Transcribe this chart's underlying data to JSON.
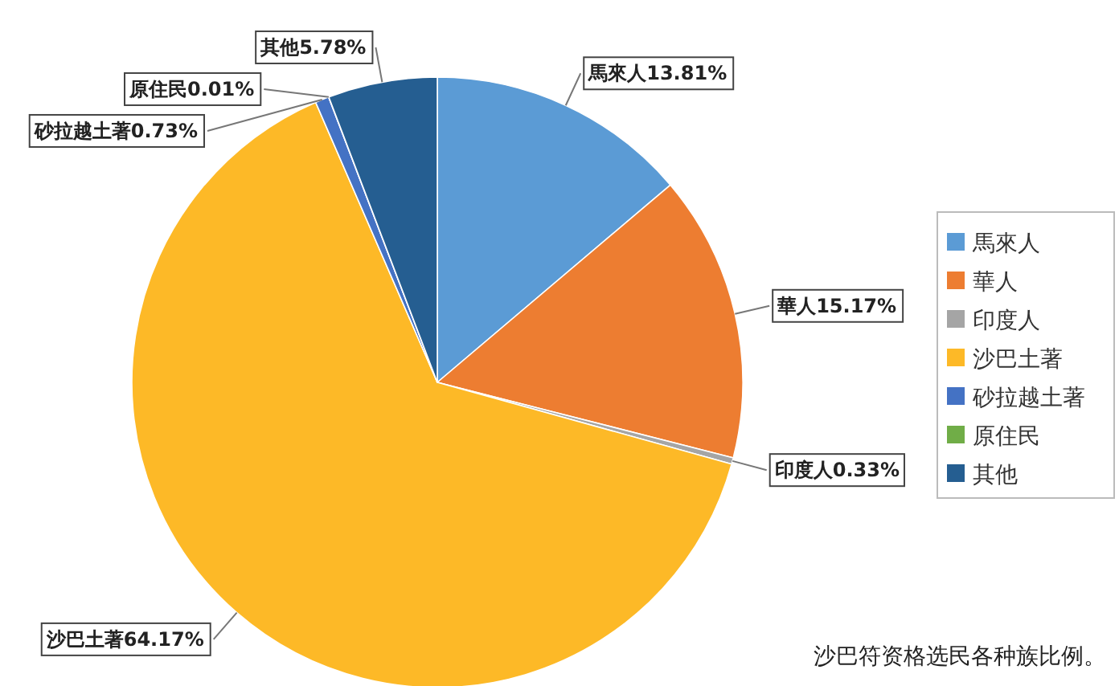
{
  "chart_data": {
    "type": "pie",
    "categories": [
      "馬來人",
      "華人",
      "印度人",
      "沙巴土著",
      "砂拉越土著",
      "原住民",
      "其他"
    ],
    "values": [
      13.81,
      15.17,
      0.33,
      64.17,
      0.73,
      0.01,
      5.78
    ],
    "value_labels": [
      "13.81%",
      "15.17%",
      "0.33%",
      "64.17%",
      "0.73%",
      "0.01%",
      "5.78%"
    ],
    "colors": [
      "#5b9bd5",
      "#ed7d31",
      "#a5a5a5",
      "#fdb927",
      "#4472c4",
      "#70ad47",
      "#255e91"
    ],
    "legend": "right",
    "annotations": [
      "沙巴符资格选民各种族比例。"
    ]
  }
}
